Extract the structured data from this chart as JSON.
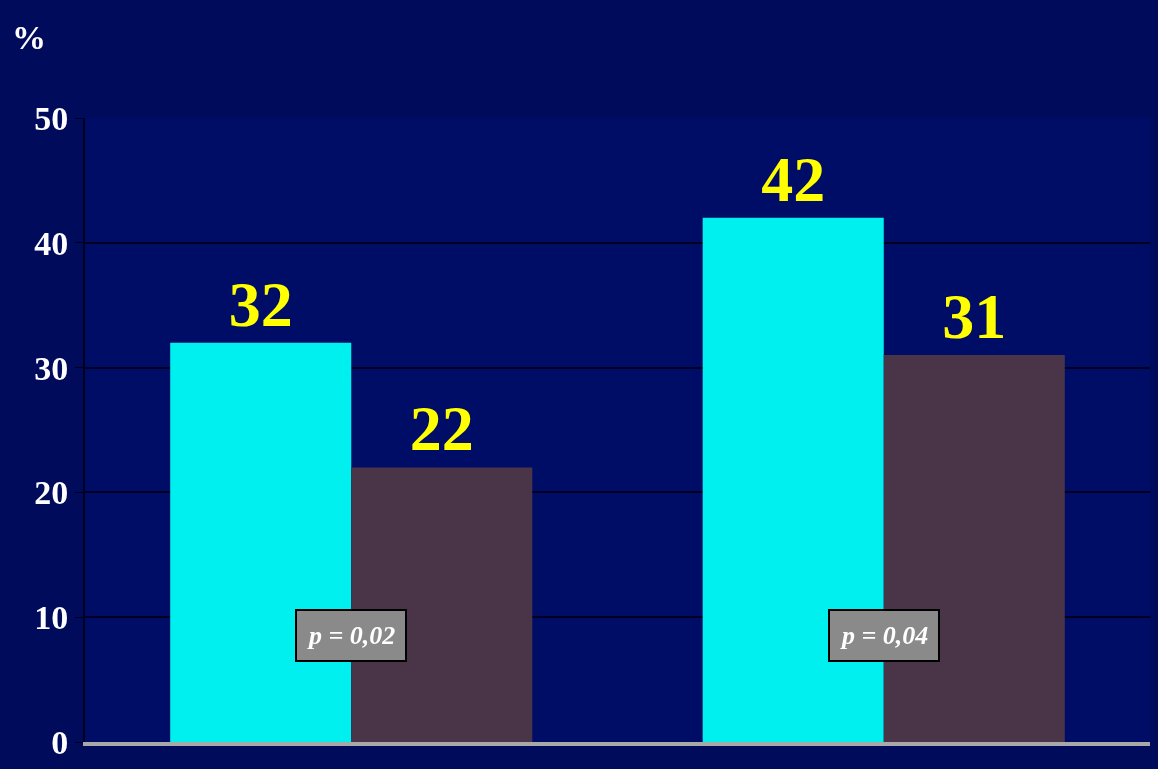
{
  "chart_data": {
    "type": "bar",
    "ylabel": "%",
    "categories": [
      null,
      null
    ],
    "series": [
      {
        "color": "#00f0f0",
        "values": [
          32,
          42
        ]
      },
      {
        "color": "#4a3548",
        "values": [
          22,
          31
        ]
      }
    ],
    "ylim": [
      0,
      50
    ],
    "yticks": [
      0,
      10,
      20,
      30,
      40,
      50
    ],
    "grid": "y",
    "data_labels": true,
    "tick_labels": "y",
    "annotations": [
      "p = 0,02",
      "p = 0,04"
    ]
  }
}
